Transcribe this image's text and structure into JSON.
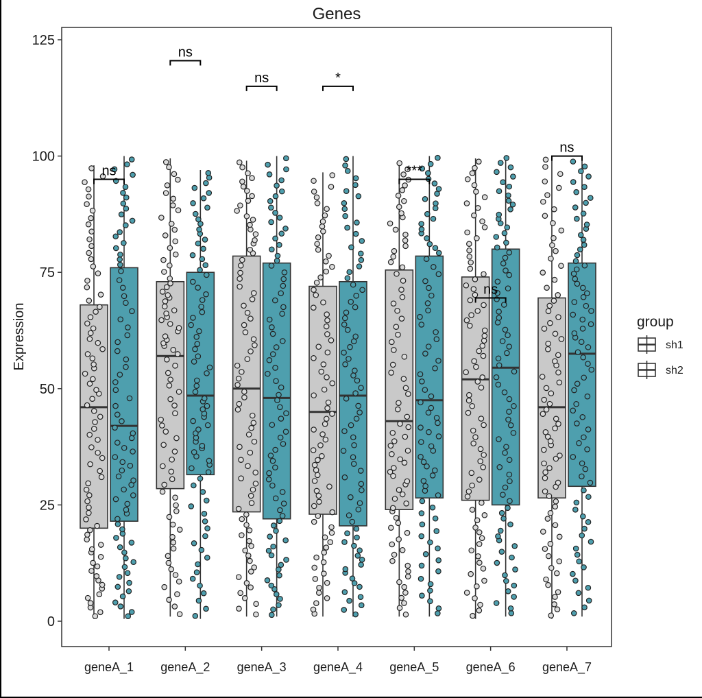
{
  "chart_data": {
    "type": "grouped-boxplot-jitter",
    "title": "Genes",
    "ylabel": "Expression",
    "xlabel": "",
    "yticks": [
      0,
      25,
      50,
      75,
      100,
      125
    ],
    "ylim": [
      0,
      125
    ],
    "grid": false,
    "categories": [
      "geneA_1",
      "geneA_2",
      "geneA_3",
      "geneA_4",
      "geneA_5",
      "geneA_6",
      "geneA_7"
    ],
    "legend": {
      "title": "group",
      "position": "right",
      "entries": [
        {
          "label": "sh1",
          "color": "#c9c9c9"
        },
        {
          "label": "sh2",
          "color": "#4e9fae"
        }
      ]
    },
    "series": [
      {
        "name": "sh1",
        "color": "#c9c9c9",
        "point_fill": "#dcdcdc",
        "boxes": [
          {
            "category": "geneA_1",
            "whisker_low": 0.5,
            "q1": 20,
            "median": 46,
            "q3": 68,
            "whisker_high": 98,
            "n_points": 80
          },
          {
            "category": "geneA_2",
            "whisker_low": 1,
            "q1": 28.5,
            "median": 57,
            "q3": 73,
            "whisker_high": 99.5,
            "n_points": 80
          },
          {
            "category": "geneA_3",
            "whisker_low": 1,
            "q1": 23.5,
            "median": 50,
            "q3": 78.5,
            "whisker_high": 99,
            "n_points": 80
          },
          {
            "category": "geneA_4",
            "whisker_low": 1,
            "q1": 23,
            "median": 45,
            "q3": 72,
            "whisker_high": 96.5,
            "n_points": 80
          },
          {
            "category": "geneA_5",
            "whisker_low": 1,
            "q1": 24,
            "median": 43,
            "q3": 75.5,
            "whisker_high": 99,
            "n_points": 80
          },
          {
            "category": "geneA_6",
            "whisker_low": 0.5,
            "q1": 26,
            "median": 52,
            "q3": 74,
            "whisker_high": 99.5,
            "n_points": 80
          },
          {
            "category": "geneA_7",
            "whisker_low": 0.5,
            "q1": 26.5,
            "median": 46,
            "q3": 69.5,
            "whisker_high": 100,
            "n_points": 80
          }
        ]
      },
      {
        "name": "sh2",
        "color": "#4e9fae",
        "point_fill": "#4e9fae",
        "boxes": [
          {
            "category": "geneA_1",
            "whisker_low": 0.5,
            "q1": 21.5,
            "median": 42,
            "q3": 76,
            "whisker_high": 100,
            "n_points": 80
          },
          {
            "category": "geneA_2",
            "whisker_low": 0.5,
            "q1": 31.5,
            "median": 48.5,
            "q3": 75,
            "whisker_high": 97,
            "n_points": 80
          },
          {
            "category": "geneA_3",
            "whisker_low": 1,
            "q1": 22,
            "median": 48,
            "q3": 77,
            "whisker_high": 100,
            "n_points": 80
          },
          {
            "category": "geneA_4",
            "whisker_low": 1,
            "q1": 20.5,
            "median": 48.5,
            "q3": 73,
            "whisker_high": 100,
            "n_points": 80
          },
          {
            "category": "geneA_5",
            "whisker_low": 1,
            "q1": 26.5,
            "median": 47.5,
            "q3": 78.5,
            "whisker_high": 100,
            "n_points": 80
          },
          {
            "category": "geneA_6",
            "whisker_low": 1,
            "q1": 25,
            "median": 54.5,
            "q3": 80,
            "whisker_high": 100,
            "n_points": 80
          },
          {
            "category": "geneA_7",
            "whisker_low": 1,
            "q1": 29,
            "median": 57.5,
            "q3": 77,
            "whisker_high": 99.5,
            "n_points": 80
          }
        ]
      }
    ],
    "significance": [
      {
        "category": "geneA_1",
        "label": "ns",
        "y": 95
      },
      {
        "category": "geneA_2",
        "label": "ns",
        "y": 120.5
      },
      {
        "category": "geneA_3",
        "label": "ns",
        "y": 115
      },
      {
        "category": "geneA_4",
        "label": "*",
        "y": 115
      },
      {
        "category": "geneA_5",
        "label": "***",
        "y": 95
      },
      {
        "category": "geneA_6",
        "label": "ns",
        "y": 69.5
      },
      {
        "category": "geneA_7",
        "label": "ns",
        "y": 100
      }
    ],
    "colors": {
      "panel_background": "#ffffff",
      "panel_border": "#333333",
      "box_border": "#333333",
      "median": "#333333",
      "whisker": "#333333",
      "point_stroke": "#222222",
      "axis_text": "#1a1a1a",
      "tick_mark": "#333333",
      "significance": "#000000"
    }
  }
}
